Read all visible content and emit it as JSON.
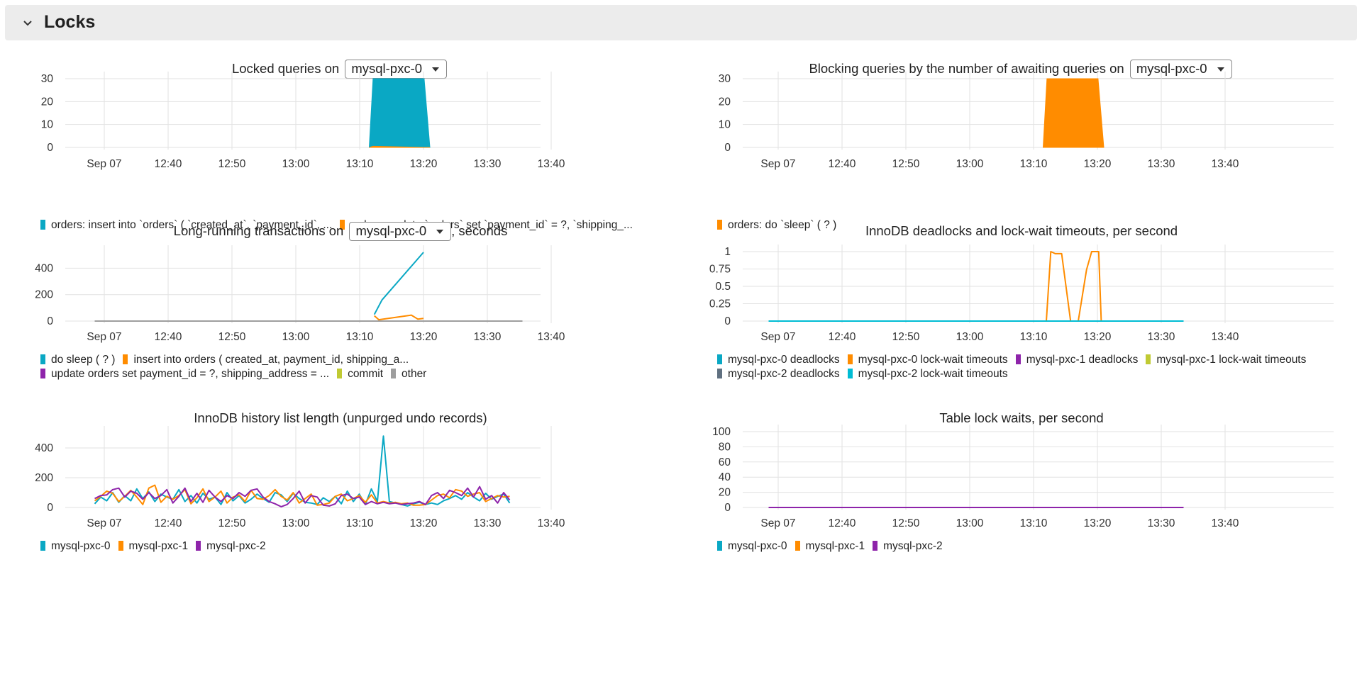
{
  "section": {
    "title": "Locks",
    "chevron_icon": "chevron-down-icon"
  },
  "xticks": [
    "Sep 07",
    "12:40",
    "12:50",
    "13:00",
    "13:10",
    "13:20",
    "13:30",
    "13:40"
  ],
  "panels": {
    "locked_queries": {
      "title_prefix": "Locked queries on",
      "title_suffix": "",
      "selector": "mysql-pxc-0",
      "legend": [
        {
          "label": "orders: insert into `orders` ( `created_at`, `payment_id`, ...",
          "color": "#0aa8c4"
        },
        {
          "label": "orders: update `orders` set `payment_id` = ?, `shipping_...",
          "color": "#ff8c00"
        }
      ]
    },
    "blocking_queries": {
      "title_prefix": "Blocking queries by the number of awaiting queries on",
      "title_suffix": "",
      "selector": "mysql-pxc-0",
      "legend": [
        {
          "label": "orders: do `sleep` ( ? )",
          "color": "#ff8c00"
        }
      ]
    },
    "long_running": {
      "title_prefix": "Long-running transactions on",
      "title_suffix": ", seconds",
      "selector": "mysql-pxc-0",
      "legend": [
        {
          "label": "do sleep ( ? )",
          "color": "#0aa8c4"
        },
        {
          "label": "insert into orders ( created_at, payment_id, shipping_a...",
          "color": "#ff8c00"
        },
        {
          "label": "update orders set payment_id = ?, shipping_address = ...",
          "color": "#8e24aa"
        },
        {
          "label": "commit",
          "color": "#c0ca33"
        },
        {
          "label": "other",
          "color": "#9e9e9e"
        }
      ]
    },
    "deadlocks": {
      "title": "InnoDB deadlocks and lock-wait timeouts, per second",
      "legend": [
        {
          "label": "mysql-pxc-0 deadlocks",
          "color": "#0aa8c4"
        },
        {
          "label": "mysql-pxc-0 lock-wait timeouts",
          "color": "#ff8c00"
        },
        {
          "label": "mysql-pxc-1 deadlocks",
          "color": "#8e24aa"
        },
        {
          "label": "mysql-pxc-1 lock-wait timeouts",
          "color": "#c0ca33"
        },
        {
          "label": "mysql-pxc-2 deadlocks",
          "color": "#607080"
        },
        {
          "label": "mysql-pxc-2 lock-wait timeouts",
          "color": "#00bcd4"
        }
      ]
    },
    "history_list": {
      "title": "InnoDB history list length (unpurged undo records)",
      "legend": [
        {
          "label": "mysql-pxc-0",
          "color": "#0aa8c4"
        },
        {
          "label": "mysql-pxc-1",
          "color": "#ff8c00"
        },
        {
          "label": "mysql-pxc-2",
          "color": "#8e24aa"
        }
      ]
    },
    "table_lock_waits": {
      "title": "Table lock waits, per second",
      "legend": [
        {
          "label": "mysql-pxc-0",
          "color": "#0aa8c4"
        },
        {
          "label": "mysql-pxc-1",
          "color": "#ff8c00"
        },
        {
          "label": "mysql-pxc-2",
          "color": "#8e24aa"
        }
      ]
    }
  },
  "chart_data": [
    {
      "type": "area",
      "title": "Locked queries on mysql-pxc-0",
      "x": [
        "13:18",
        "13:18.6",
        "13:26.6",
        "13:27.5"
      ],
      "yticks": [
        "0",
        "10",
        "20",
        "30"
      ],
      "ylim": [
        0,
        30
      ],
      "series": [
        {
          "name": "orders: insert into `orders` ( `created_at`, `payment_id`, ...",
          "values": [
            0,
            30,
            30,
            0
          ],
          "color": "#0aa8c4"
        },
        {
          "name": "orders: update `orders` set `payment_id` = ?, `shipping_...",
          "values": [
            0,
            0.5,
            0,
            0
          ],
          "color": "#ff8c00"
        }
      ]
    },
    {
      "type": "area",
      "title": "Blocking queries by the number of awaiting queries on mysql-pxc-0",
      "x": [
        "13:18",
        "13:18.6",
        "13:26.6",
        "13:27.5"
      ],
      "yticks": [
        "0",
        "10",
        "20",
        "30"
      ],
      "ylim": [
        0,
        30
      ],
      "series": [
        {
          "name": "orders: do `sleep` ( ? )",
          "values": [
            0,
            30,
            30,
            0
          ],
          "color": "#ff8c00"
        }
      ]
    },
    {
      "type": "line",
      "title": "Long-running transactions on mysql-pxc-0, seconds",
      "yticks": [
        "0",
        "200",
        "400"
      ],
      "ylim": [
        0,
        520
      ],
      "series": [
        {
          "name": "do sleep ( ? )",
          "x": [
            "13:18.8",
            "13:20",
            "13:26.5"
          ],
          "values": [
            50,
            160,
            520
          ],
          "color": "#0aa8c4"
        },
        {
          "name": "insert into orders ( created_at, payment_id, shipping_a...",
          "x": [
            "13:18.8",
            "13:19.5",
            "13:24.6",
            "13:25.6",
            "13:26.5"
          ],
          "values": [
            40,
            10,
            45,
            15,
            20
          ],
          "color": "#ff8c00"
        },
        {
          "name": "other",
          "x": [
            "12:35",
            "13:42"
          ],
          "values": [
            0,
            0
          ],
          "color": "#9e9e9e"
        }
      ]
    },
    {
      "type": "line",
      "title": "InnoDB deadlocks and lock-wait timeouts, per second",
      "yticks": [
        "0",
        "0.25",
        "0.5",
        "0.75",
        "1"
      ],
      "ylim": [
        0,
        1
      ],
      "series": [
        {
          "name": "mysql-pxc-0 lock-wait timeouts",
          "x": [
            "13:18.5",
            "13:19.2",
            "13:19.9",
            "13:20.9",
            "13:22.3",
            "13:23.5",
            "13:24.8",
            "13:25.6",
            "13:26.7",
            "13:27.1"
          ],
          "values": [
            0,
            1,
            0.97,
            0.97,
            0,
            0,
            0.74,
            1,
            1,
            0
          ],
          "color": "#ff8c00"
        },
        {
          "name": "mysql-pxc-2 lock-wait timeouts",
          "x": [
            "12:35",
            "13:40"
          ],
          "values": [
            0,
            0
          ],
          "color": "#00bcd4"
        }
      ]
    },
    {
      "type": "line",
      "title": "InnoDB history list length (unpurged undo records)",
      "yticks": [
        "0",
        "200",
        "400"
      ],
      "ylim": [
        0,
        500
      ],
      "series": [
        {
          "name": "mysql-pxc-0",
          "color": "#0aa8c4",
          "values": [
            25,
            70,
            45,
            100,
            35,
            80,
            45,
            125,
            60,
            105,
            40,
            90,
            70,
            55,
            120,
            40,
            80,
            30,
            95,
            55,
            70,
            20,
            100,
            45,
            80,
            30,
            55,
            90,
            60,
            35,
            100,
            85,
            40,
            95,
            60,
            35,
            30,
            20,
            65,
            40,
            75,
            25,
            110,
            40,
            90,
            20,
            125,
            40,
            480,
            40,
            30,
            20,
            10,
            25,
            35,
            20,
            30,
            20,
            45,
            60,
            80,
            55,
            100,
            70,
            45,
            95,
            55,
            75,
            90,
            30
          ]
        },
        {
          "name": "mysql-pxc-1",
          "color": "#ff8c00",
          "values": [
            45,
            75,
            110,
            95,
            40,
            75,
            115,
            70,
            20,
            130,
            150,
            35,
            75,
            55,
            80,
            120,
            25,
            65,
            125,
            40,
            70,
            110,
            30,
            70,
            85,
            40,
            115,
            60,
            55,
            80,
            120,
            75,
            50,
            100,
            30,
            60,
            90,
            15,
            20,
            30,
            75,
            90,
            45,
            60,
            80,
            35,
            85,
            30,
            40,
            30,
            35,
            25,
            30,
            15,
            15,
            20,
            50,
            80,
            90,
            65,
            120,
            110,
            75,
            90,
            100,
            40,
            60,
            80,
            70,
            75
          ]
        },
        {
          "name": "mysql-pxc-2",
          "color": "#8e24aa",
          "values": [
            60,
            80,
            85,
            120,
            130,
            70,
            110,
            95,
            55,
            100,
            60,
            80,
            120,
            30,
            75,
            130,
            40,
            95,
            35,
            115,
            70,
            40,
            80,
            60,
            100,
            75,
            115,
            125,
            70,
            40,
            25,
            5,
            20,
            60,
            110,
            30,
            80,
            70,
            15,
            10,
            25,
            80,
            90,
            60,
            70,
            20,
            40,
            25,
            35,
            25,
            30,
            20,
            25,
            30,
            40,
            20,
            80,
            100,
            60,
            115,
            100,
            80,
            130,
            70,
            140,
            55,
            80,
            30,
            100,
            50
          ]
        }
      ]
    },
    {
      "type": "line",
      "title": "Table lock waits, per second",
      "yticks": [
        "0",
        "20",
        "40",
        "60",
        "80",
        "100"
      ],
      "ylim": [
        0,
        100
      ],
      "series": [
        {
          "name": "mysql-pxc-2",
          "x": [
            "12:35",
            "13:40"
          ],
          "values": [
            0,
            0
          ],
          "color": "#8e24aa"
        }
      ]
    }
  ]
}
